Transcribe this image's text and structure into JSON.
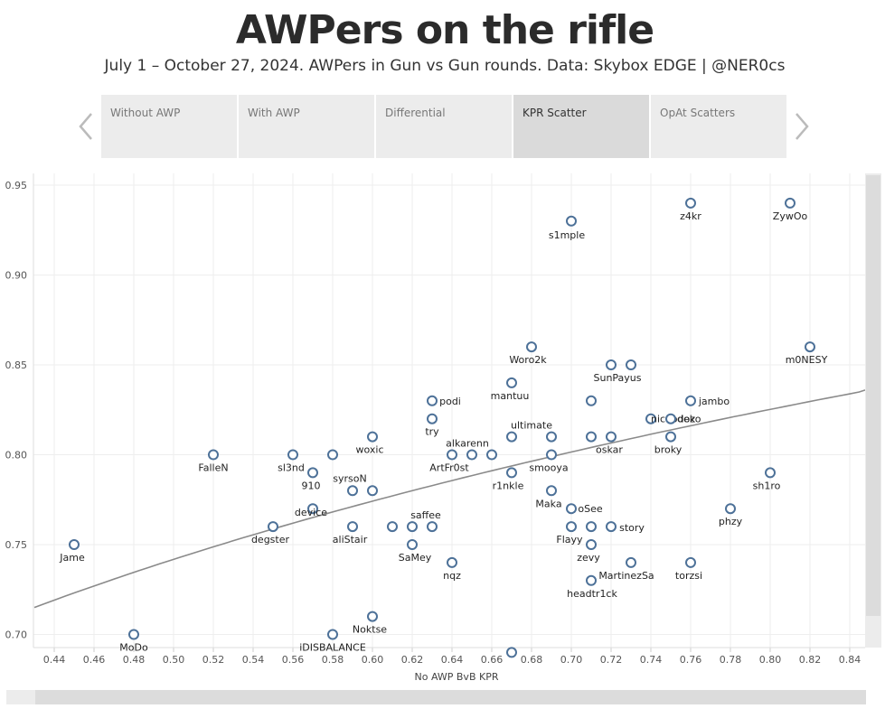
{
  "header": {
    "title": "AWPers on the rifle",
    "subtitle": "July 1 – October 27, 2024. AWPers in Gun vs Gun rounds. Data: Skybox EDGE | @NER0cs"
  },
  "tabs": [
    {
      "label": "Without AWP",
      "active": false
    },
    {
      "label": "With AWP",
      "active": false
    },
    {
      "label": "Differential",
      "active": false
    },
    {
      "label": "KPR Scatter",
      "active": true
    },
    {
      "label": "OpAt Scatters",
      "active": false
    }
  ],
  "colors": {
    "point_stroke": "#4d7198",
    "trend_line": "#8a8a8a",
    "grid": "#eeeeee"
  },
  "chart_data": {
    "type": "scatter",
    "title": "",
    "xlabel": "No AWP BvB KPR",
    "ylabel": "",
    "xlim": [
      0.43,
      0.85
    ],
    "ylim": [
      0.69,
      0.955
    ],
    "x_ticks": [
      "0.44",
      "0.46",
      "0.48",
      "0.50",
      "0.52",
      "0.54",
      "0.56",
      "0.58",
      "0.60",
      "0.62",
      "0.64",
      "0.66",
      "0.68",
      "0.70",
      "0.72",
      "0.74",
      "0.76",
      "0.78",
      "0.80",
      "0.82",
      "0.84"
    ],
    "y_ticks": [
      "0.70",
      "0.75",
      "0.80",
      "0.85",
      "0.90",
      "0.95"
    ],
    "grid": true,
    "trendline": {
      "type": "logarithmic",
      "points": [
        [
          0.43,
          0.715
        ],
        [
          0.55,
          0.761
        ],
        [
          0.65,
          0.793
        ],
        [
          0.75,
          0.818
        ],
        [
          0.85,
          0.836
        ]
      ]
    },
    "points": [
      {
        "label": "Jame",
        "x": 0.45,
        "y": 0.75
      },
      {
        "label": "MoDo",
        "x": 0.48,
        "y": 0.7
      },
      {
        "label": "FalleN",
        "x": 0.52,
        "y": 0.8
      },
      {
        "label": "degster",
        "x": 0.55,
        "y": 0.76
      },
      {
        "label": "sl3nd",
        "x": 0.56,
        "y": 0.8
      },
      {
        "label": "910",
        "x": 0.57,
        "y": 0.79
      },
      {
        "label": "device",
        "x": 0.57,
        "y": 0.77
      },
      {
        "label": "",
        "x": 0.58,
        "y": 0.8
      },
      {
        "label": "iDISBALANCE",
        "x": 0.58,
        "y": 0.7
      },
      {
        "label": "syrsoN",
        "x": 0.59,
        "y": 0.78
      },
      {
        "label": "aliStair",
        "x": 0.59,
        "y": 0.76
      },
      {
        "label": "woxic",
        "x": 0.6,
        "y": 0.81
      },
      {
        "label": "",
        "x": 0.6,
        "y": 0.78
      },
      {
        "label": "Noktse",
        "x": 0.6,
        "y": 0.71
      },
      {
        "label": "",
        "x": 0.61,
        "y": 0.76
      },
      {
        "label": "",
        "x": 0.62,
        "y": 0.76
      },
      {
        "label": "SaMey",
        "x": 0.62,
        "y": 0.75
      },
      {
        "label": "saffee",
        "x": 0.63,
        "y": 0.76
      },
      {
        "label": "podi",
        "x": 0.63,
        "y": 0.83
      },
      {
        "label": "try",
        "x": 0.63,
        "y": 0.82
      },
      {
        "label": "ArtFr0st",
        "x": 0.64,
        "y": 0.8
      },
      {
        "label": "nqz",
        "x": 0.64,
        "y": 0.74
      },
      {
        "label": "alkarenn",
        "x": 0.65,
        "y": 0.8
      },
      {
        "label": "",
        "x": 0.66,
        "y": 0.8
      },
      {
        "label": "mantuu",
        "x": 0.67,
        "y": 0.84
      },
      {
        "label": "",
        "x": 0.67,
        "y": 0.81
      },
      {
        "label": "r1nkle",
        "x": 0.67,
        "y": 0.79
      },
      {
        "label": "",
        "x": 0.67,
        "y": 0.69
      },
      {
        "label": "Woro2k",
        "x": 0.68,
        "y": 0.86
      },
      {
        "label": "ultimate",
        "x": 0.69,
        "y": 0.81
      },
      {
        "label": "smooya",
        "x": 0.69,
        "y": 0.8
      },
      {
        "label": "Maka",
        "x": 0.69,
        "y": 0.78
      },
      {
        "label": "s1mple",
        "x": 0.7,
        "y": 0.93
      },
      {
        "label": "oSee",
        "x": 0.7,
        "y": 0.77
      },
      {
        "label": "Flayy",
        "x": 0.7,
        "y": 0.76
      },
      {
        "label": "",
        "x": 0.71,
        "y": 0.83
      },
      {
        "label": "",
        "x": 0.71,
        "y": 0.81
      },
      {
        "label": "",
        "x": 0.71,
        "y": 0.76
      },
      {
        "label": "zevy",
        "x": 0.71,
        "y": 0.75
      },
      {
        "label": "headtr1ck",
        "x": 0.71,
        "y": 0.73
      },
      {
        "label": "SunPayus",
        "x": 0.72,
        "y": 0.85
      },
      {
        "label": "oskar",
        "x": 0.72,
        "y": 0.81
      },
      {
        "label": "story",
        "x": 0.72,
        "y": 0.76
      },
      {
        "label": "",
        "x": 0.73,
        "y": 0.85
      },
      {
        "label": "MartinezSa",
        "x": 0.73,
        "y": 0.74
      },
      {
        "label": "nicoodoz",
        "x": 0.74,
        "y": 0.82
      },
      {
        "label": "deko",
        "x": 0.75,
        "y": 0.82
      },
      {
        "label": "broky",
        "x": 0.75,
        "y": 0.81
      },
      {
        "label": "z4kr",
        "x": 0.76,
        "y": 0.94
      },
      {
        "label": "jambo",
        "x": 0.76,
        "y": 0.83
      },
      {
        "label": "torzsi",
        "x": 0.76,
        "y": 0.74
      },
      {
        "label": "phzy",
        "x": 0.78,
        "y": 0.77
      },
      {
        "label": "sh1ro",
        "x": 0.8,
        "y": 0.79
      },
      {
        "label": "ZywOo",
        "x": 0.81,
        "y": 0.94
      },
      {
        "label": "m0NESY",
        "x": 0.82,
        "y": 0.86
      }
    ]
  }
}
